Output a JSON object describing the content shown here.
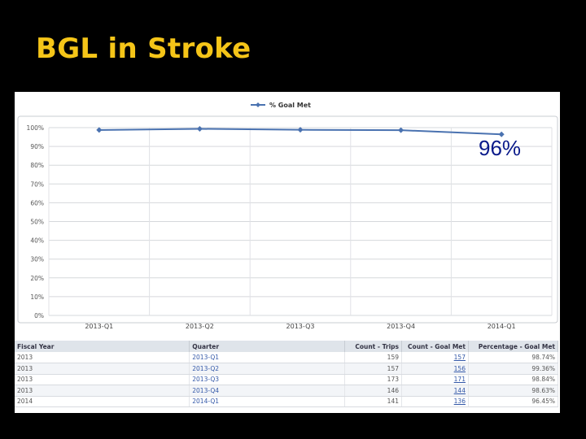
{
  "slide": {
    "title": "BGL in Stroke"
  },
  "callout": "96%",
  "chart_data": {
    "type": "line",
    "title": "",
    "xlabel": "",
    "ylabel": "",
    "categories": [
      "2013-Q1",
      "2013-Q2",
      "2013-Q3",
      "2013-Q4",
      "2014-Q1"
    ],
    "series": [
      {
        "name": "% Goal Met",
        "values": [
          98.74,
          99.36,
          98.84,
          98.63,
          96.45
        ],
        "color": "#4a72b0"
      }
    ],
    "ylim": [
      0,
      100
    ],
    "yticks": [
      0,
      10,
      20,
      30,
      40,
      50,
      60,
      70,
      80,
      90,
      100
    ],
    "ytick_labels": [
      "0%",
      "10%",
      "20%",
      "30%",
      "40%",
      "50%",
      "60%",
      "70%",
      "80%",
      "90%",
      "100%"
    ],
    "grid": true,
    "legend": "top-center"
  },
  "table": {
    "headers": [
      "Fiscal Year",
      "Quarter",
      "Count - Trips",
      "Count - Goal Met",
      "Percentage - Goal Met"
    ],
    "rows": [
      [
        "2013",
        "2013-Q1",
        "159",
        "157",
        "98.74%"
      ],
      [
        "2013",
        "2013-Q2",
        "157",
        "156",
        "99.36%"
      ],
      [
        "2013",
        "2013-Q3",
        "173",
        "171",
        "98.84%"
      ],
      [
        "2013",
        "2013-Q4",
        "146",
        "144",
        "98.63%"
      ],
      [
        "2014",
        "2014-Q1",
        "141",
        "136",
        "96.45%"
      ]
    ]
  }
}
